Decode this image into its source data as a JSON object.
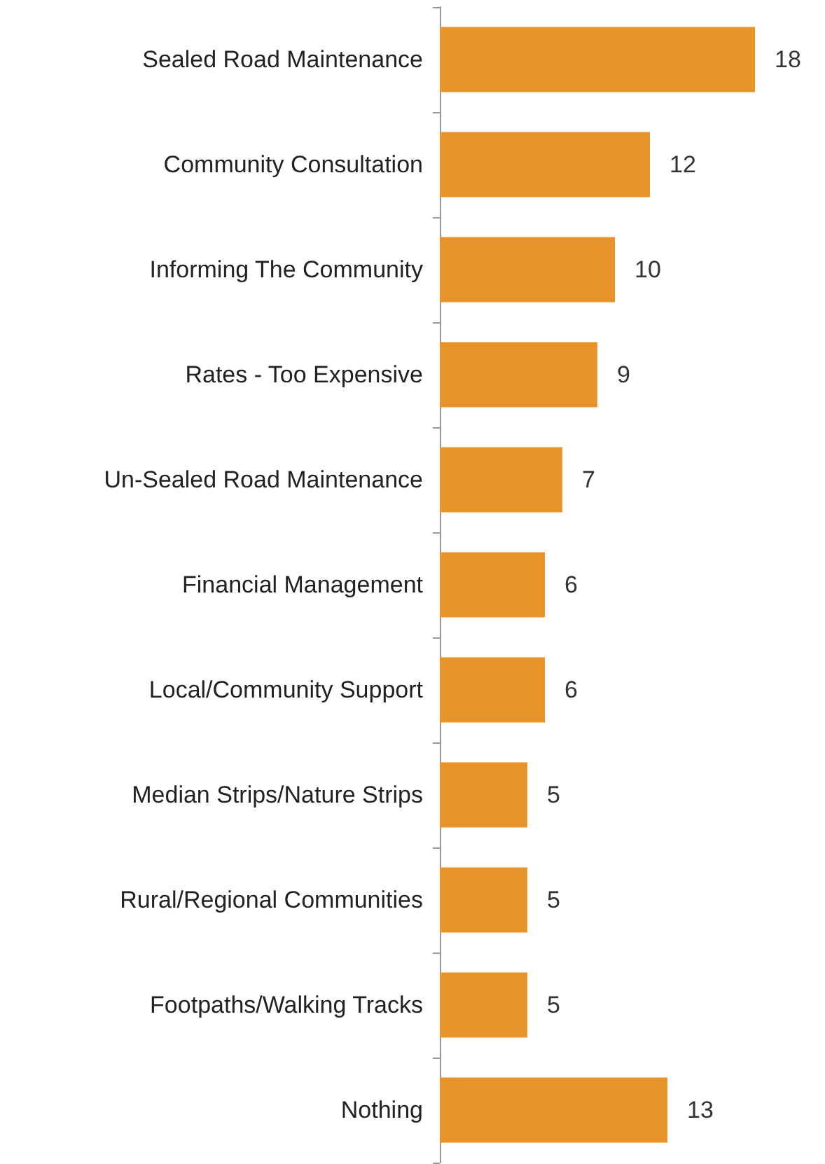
{
  "chart_data": {
    "type": "bar",
    "orientation": "horizontal",
    "data_labels": true,
    "categories": [
      "Sealed Road Maintenance",
      "Community Consultation",
      "Informing The Community",
      "Rates - Too Expensive",
      "Un-Sealed Road Maintenance",
      "Financial Management",
      "Local/Community Support",
      "Median Strips/Nature Strips",
      "Rural/Regional Communities",
      "Footpaths/Walking Tracks",
      "Nothing"
    ],
    "values": [
      18,
      12,
      10,
      9,
      7,
      6,
      6,
      5,
      5,
      5,
      13
    ],
    "color": "#e8922a"
  }
}
